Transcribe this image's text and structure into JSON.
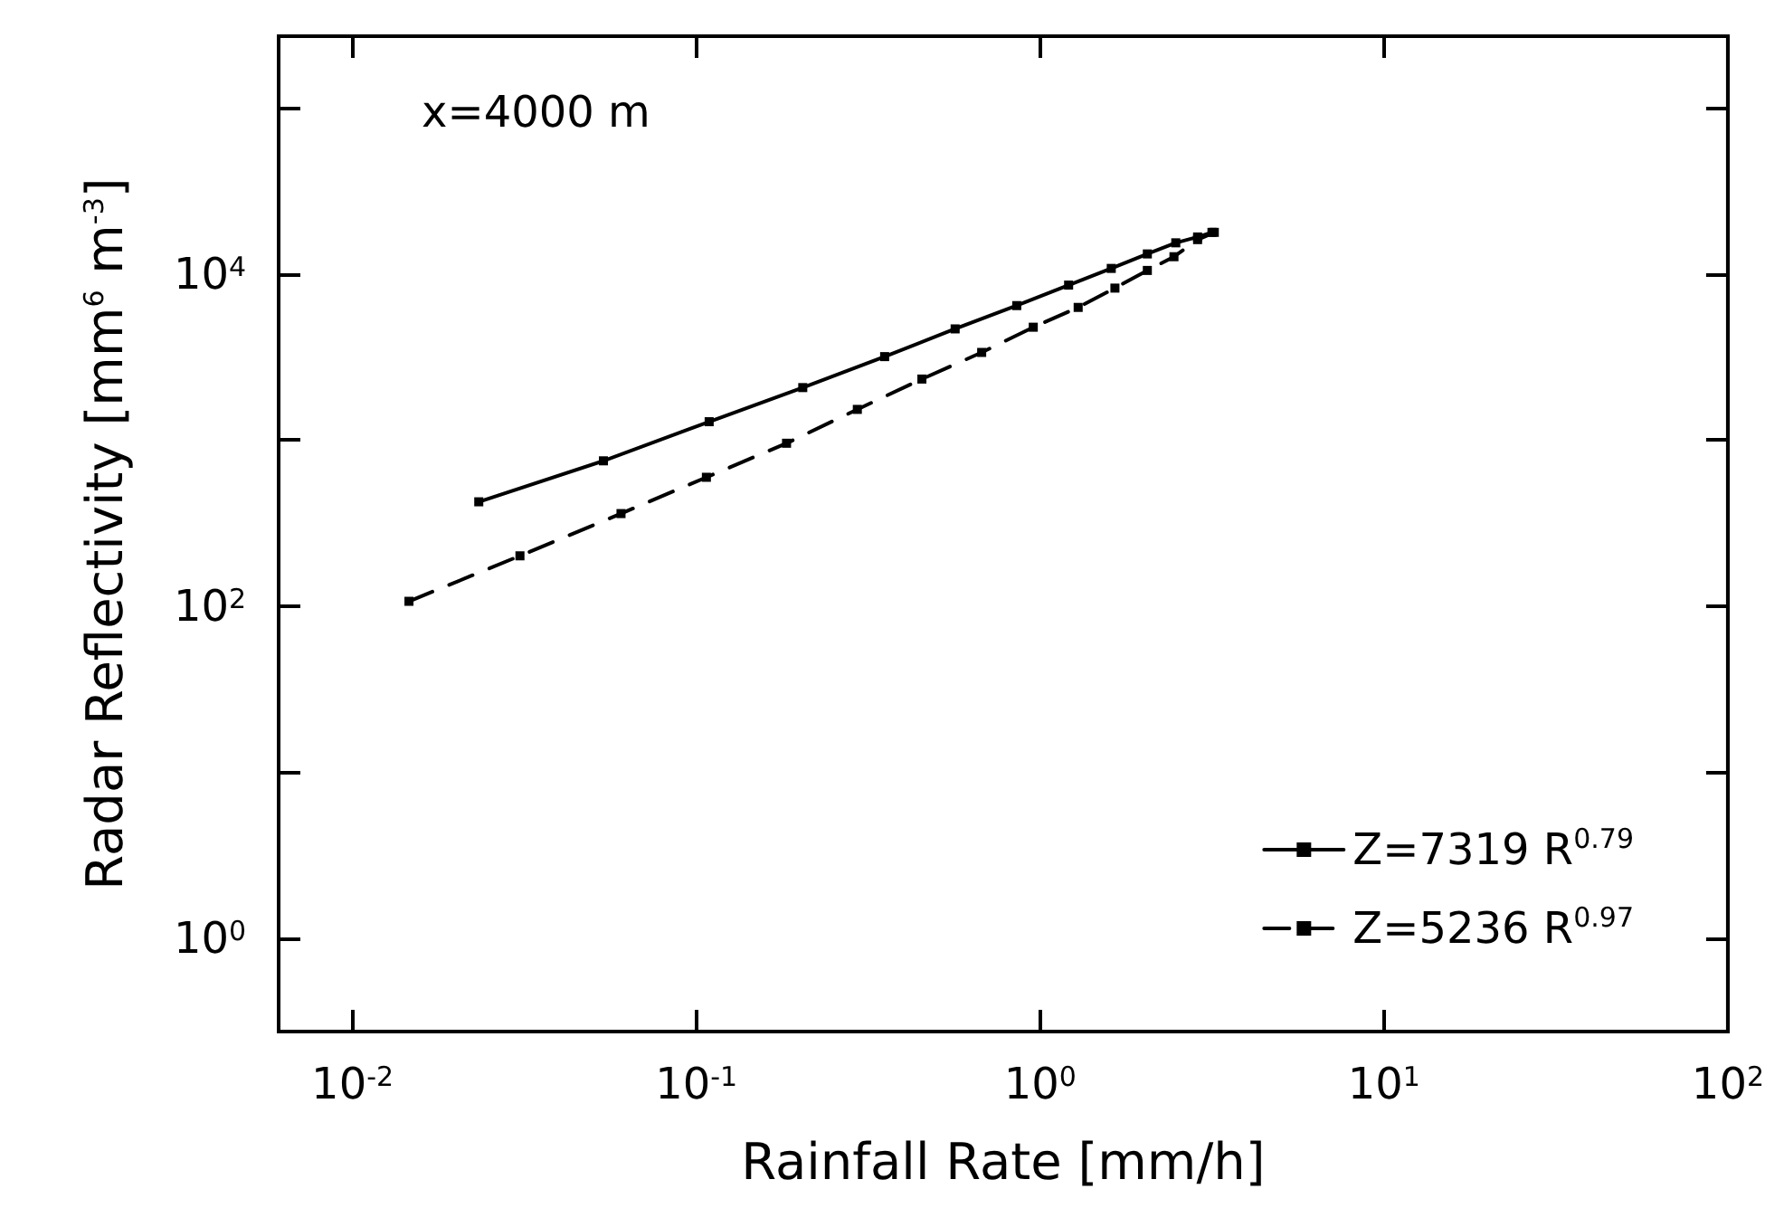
{
  "chart_data": {
    "type": "line",
    "xlabel": "Rainfall Rate [mm/h]",
    "ylabel": "Radar Reflectivity [mm$^{6}$ m$^{-3}$]",
    "annotations": [
      "x=4000 m"
    ],
    "log": "xy",
    "grid": false,
    "legend": "bottom right",
    "marker": "square",
    "xlim": [
      0.0061,
      100
    ],
    "ylim": [
      0.275,
      270000
    ],
    "xticks": [
      {
        "value": 0.01,
        "label": "10$^{-2}$"
      },
      {
        "value": 0.1,
        "label": "10$^{-1}$"
      },
      {
        "value": 1,
        "label": "10$^{0}$"
      },
      {
        "value": 10,
        "label": "10$^{1}$"
      },
      {
        "value": 100,
        "label": "10$^{2}$"
      }
    ],
    "yticks": [
      {
        "value": 1,
        "label": "10$^{0}$"
      },
      {
        "value": 10,
        "label": null
      },
      {
        "value": 100,
        "label": "10$^{2}$"
      },
      {
        "value": 1000,
        "label": null
      },
      {
        "value": 10000,
        "label": "10$^{4}$"
      },
      {
        "value": 100000,
        "label": null
      }
    ],
    "series": [
      {
        "name": "Z=7319 R$^{0.79}$",
        "color": "#000000",
        "line_style": "solid",
        "x": [
          0.0233,
          0.0537,
          0.109,
          0.204,
          0.353,
          0.566,
          0.855,
          1.21,
          1.61,
          2.05,
          2.48,
          2.87,
          3.16
        ],
        "values": [
          425,
          750,
          1290,
          2070,
          3180,
          4670,
          6450,
          8570,
          10800,
          13200,
          15400,
          16700,
          17800
        ]
      },
      {
        "name": "Z=5236 R$^{0.97}$",
        "color": "#000000",
        "line_style": "dashed",
        "x": [
          0.0146,
          0.0307,
          0.0604,
          0.107,
          0.183,
          0.294,
          0.453,
          0.676,
          0.955,
          1.29,
          1.65,
          2.05,
          2.45,
          2.87,
          3.21
        ],
        "values": [
          107,
          201,
          361,
          597,
          957,
          1530,
          2330,
          3370,
          4780,
          6290,
          8220,
          10500,
          12700,
          16100,
          17800
        ]
      }
    ]
  }
}
